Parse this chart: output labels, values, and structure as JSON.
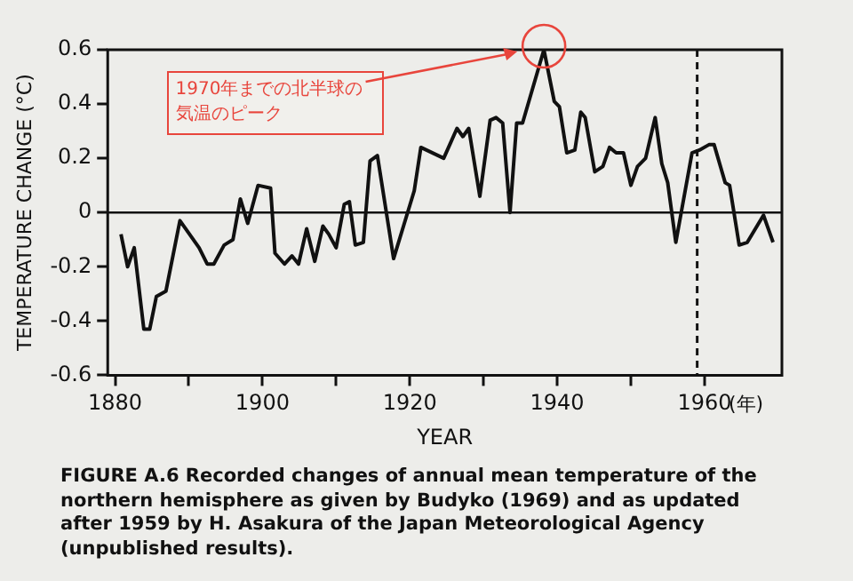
{
  "chart_data": {
    "type": "line",
    "ylabel": "TEMPERATURE CHANGE (°C)",
    "xlabel": "YEAR",
    "x": [
      1880.8,
      1881.7,
      1882.6,
      1883.9,
      1884.7,
      1885.6,
      1886.9,
      1888.8,
      1891.4,
      1892.5,
      1893.4,
      1894.8,
      1896,
      1897,
      1898,
      1899.4,
      1901.1,
      1901.7,
      1903,
      1904,
      1904.9,
      1906,
      1907.1,
      1908.2,
      1909,
      1910,
      1911.1,
      1911.8,
      1912.6,
      1913.7,
      1914.6,
      1915.6,
      1917.8,
      1920.6,
      1921.5,
      1924.6,
      1926.4,
      1927.2,
      1928,
      1929.5,
      1930.9,
      1931.7,
      1932.6,
      1933.6,
      1934.5,
      1935.3,
      1938.2,
      1939.6,
      1940.3,
      1941.3,
      1942.4,
      1943.2,
      1943.8,
      1945.1,
      1946.2,
      1947.1,
      1948,
      1949,
      1950,
      1950.9,
      1952,
      1953.3,
      1954.2,
      1955,
      1956.1,
      1958.3,
      1959.3,
      1960.6,
      1961.3,
      1962.8,
      1963.4,
      1964.7,
      1965.8,
      1968,
      1969.3
    ],
    "series": [
      {
        "color": "#111111",
        "values": [
          -0.08,
          -0.2,
          -0.13,
          -0.43,
          -0.43,
          -0.31,
          -0.29,
          -0.03,
          -0.13,
          -0.19,
          -0.19,
          -0.12,
          -0.1,
          0.05,
          -0.04,
          0.1,
          0.09,
          -0.15,
          -0.19,
          -0.16,
          -0.19,
          -0.06,
          -0.18,
          -0.05,
          -0.08,
          -0.13,
          0.03,
          0.04,
          -0.12,
          -0.11,
          0.19,
          0.21,
          -0.17,
          0.08,
          0.24,
          0.2,
          0.31,
          0.28,
          0.31,
          0.06,
          0.34,
          0.35,
          0.33,
          0.0,
          0.33,
          0.33,
          0.6,
          0.41,
          0.39,
          0.22,
          0.23,
          0.37,
          0.35,
          0.15,
          0.17,
          0.24,
          0.22,
          0.22,
          0.1,
          0.17,
          0.2,
          0.35,
          0.18,
          0.11,
          -0.11,
          0.22,
          0.23,
          0.25,
          0.25,
          0.11,
          0.1,
          -0.12,
          -0.11,
          -0.01,
          -0.11
        ]
      }
    ],
    "xlim": [
      1879,
      1970.5
    ],
    "xticks": [
      1880,
      {
        "value": 1890,
        "label": null
      },
      1900,
      {
        "value": 1910,
        "label": null
      },
      1920,
      {
        "value": 1930,
        "label": null
      },
      1940,
      {
        "value": 1950,
        "label": null
      },
      1960
    ],
    "ylim": [
      -0.6,
      0.6
    ],
    "yticks": [
      -0.6,
      -0.4,
      -0.2,
      0,
      0.2,
      0.4,
      0.6
    ],
    "ref_lines": [
      {
        "axis": "y",
        "value": 0,
        "line_style": "solid",
        "color": "#111111"
      },
      {
        "axis": "x",
        "value": 1959,
        "line_style": "dashed",
        "color": "#111111"
      }
    ],
    "annotations": [
      "1970年までの北半球の気温のピーク",
      "(年)",
      "FIGURE A.6   Recorded changes of annual mean temperature of the northern hemisphere as given by Budyko (1969) and as updated after 1959 by H. Asakura of the Japan Meteorological Agency (unpublished results)."
    ],
    "grid": false,
    "legend": false,
    "marker": "none",
    "line_style": "solid"
  }
}
